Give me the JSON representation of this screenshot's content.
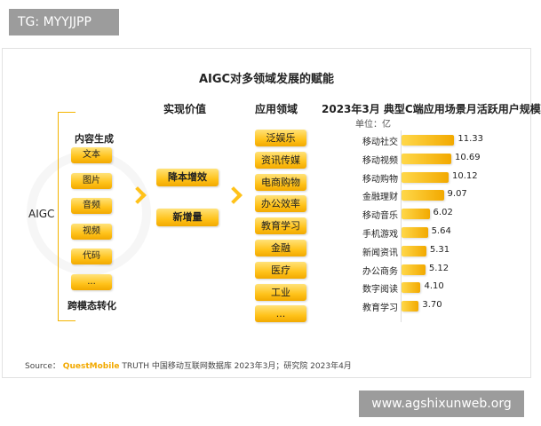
{
  "watermark_top": "TG: MYYJJPP",
  "watermark_bottom": "www.agshixunweb.org",
  "title": "AIGC对多领域发展的赋能",
  "headers": {
    "value": "实现价值",
    "domain": "应用领域",
    "chart": "2023年3月 典型C端应用场景月活跃用户规模"
  },
  "unit": "单位：亿",
  "aigc_label": "AIGC",
  "content_gen_label": "内容生成",
  "cross_modal_label": "跨模态转化",
  "content_types": [
    "文本",
    "图片",
    "音频",
    "视频",
    "代码",
    "..."
  ],
  "values": [
    "降本增效",
    "新增量"
  ],
  "domains": [
    "泛娱乐",
    "资讯传媒",
    "电商购物",
    "办公效率",
    "教育学习",
    "金融",
    "医疗",
    "工业",
    "..."
  ],
  "source": {
    "prefix": "Source：",
    "brand": "QuestMobile",
    "rest": " TRUTH 中国移动互联网数据库 2023年3月；研究院 2023年4月"
  },
  "colors": {
    "accent": "#ffc21a",
    "accent_dark": "#f2a900"
  },
  "chart_data": {
    "type": "bar",
    "orientation": "horizontal",
    "title": "2023年3月 典型C端应用场景月活跃用户规模",
    "unit": "单位：亿",
    "categories": [
      "移动社交",
      "移动视频",
      "移动购物",
      "金融理财",
      "移动音乐",
      "手机游戏",
      "新闻资讯",
      "办公商务",
      "数字阅读",
      "教育学习"
    ],
    "values": [
      11.33,
      10.69,
      10.12,
      9.07,
      6.02,
      5.64,
      5.31,
      5.12,
      4.1,
      3.7
    ],
    "xlim": [
      0,
      12.5
    ]
  }
}
